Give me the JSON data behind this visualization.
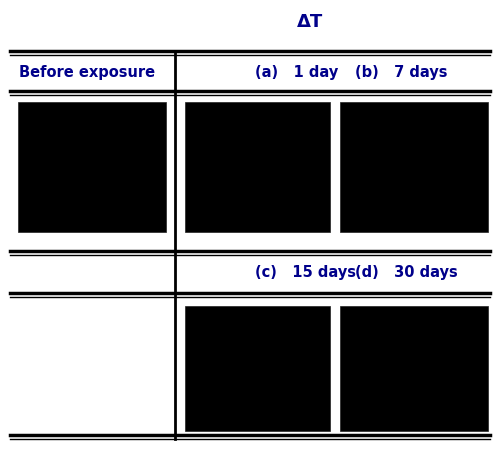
{
  "title": "ΔT",
  "title_color": "#00008B",
  "title_fontsize": 13,
  "header_text_color": "#00008B",
  "bg_color": "#ffffff",
  "line_color": "#000000",
  "box_color": "#000000",
  "before_exposure_label": "Before exposure",
  "labels": [
    "(a)   1 day",
    "(b)   7 days",
    "(c)   15 days",
    "(d)   30 days"
  ],
  "label_fontsize": 10.5,
  "header_fontsize": 10.5,
  "figwidth": 5.0,
  "figheight": 4.52,
  "dpi": 100
}
